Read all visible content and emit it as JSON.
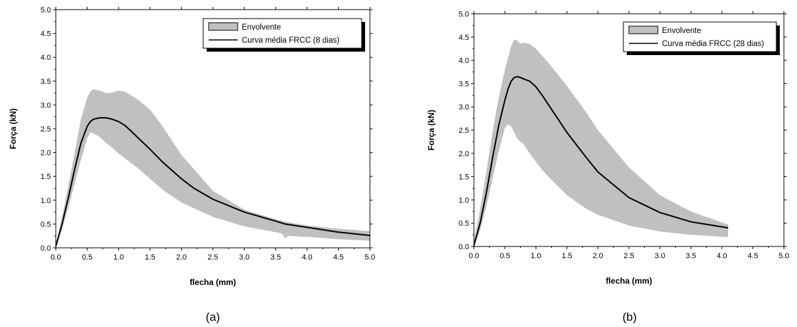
{
  "chart_data": [
    {
      "type": "area",
      "caption": "(a)",
      "xlabel": "flecha (mm)",
      "ylabel": "Força (kN)",
      "xlim": [
        0,
        5
      ],
      "ylim": [
        0,
        5
      ],
      "xticks": [
        "0.0",
        "0.5",
        "1.0",
        "1.5",
        "2.0",
        "2.5",
        "3.0",
        "3.5",
        "4.0",
        "4.5",
        "5.0"
      ],
      "yticks": [
        "0.0",
        "0.5",
        "1.0",
        "1.5",
        "2.0",
        "2.5",
        "3.0",
        "3.5",
        "4.0",
        "4.5",
        "5.0"
      ],
      "legend_position": "top-right",
      "band_color": "#c0c0c0",
      "line_color": "#000000",
      "series": [
        {
          "name": "Envolvente",
          "kind": "band",
          "x": [
            0.0,
            0.1,
            0.2,
            0.3,
            0.4,
            0.5,
            0.55,
            0.6,
            0.7,
            0.8,
            0.9,
            1.0,
            1.1,
            1.2,
            1.3,
            1.5,
            1.7,
            2.0,
            2.5,
            3.0,
            3.5,
            3.6,
            3.65,
            3.7,
            4.0,
            4.5,
            5.0
          ],
          "upper": [
            0.08,
            0.65,
            1.3,
            2.0,
            2.7,
            3.15,
            3.28,
            3.33,
            3.3,
            3.25,
            3.26,
            3.3,
            3.28,
            3.2,
            3.12,
            2.9,
            2.55,
            1.95,
            1.2,
            0.8,
            0.6,
            0.57,
            0.55,
            0.54,
            0.47,
            0.4,
            0.35
          ],
          "lower": [
            0.0,
            0.38,
            0.85,
            1.35,
            1.85,
            2.3,
            2.43,
            2.4,
            2.33,
            2.2,
            2.1,
            1.98,
            1.88,
            1.78,
            1.68,
            1.45,
            1.22,
            0.95,
            0.65,
            0.45,
            0.33,
            0.3,
            0.2,
            0.25,
            0.23,
            0.18,
            0.15
          ]
        },
        {
          "name": "Curva média FRCC (8 dias)",
          "kind": "line",
          "x": [
            0.0,
            0.1,
            0.2,
            0.3,
            0.4,
            0.5,
            0.55,
            0.6,
            0.7,
            0.8,
            0.9,
            1.0,
            1.1,
            1.2,
            1.3,
            1.5,
            1.7,
            2.0,
            2.2,
            2.5,
            3.0,
            3.5,
            3.65,
            4.0,
            4.5,
            5.0
          ],
          "y": [
            0.03,
            0.5,
            1.05,
            1.65,
            2.2,
            2.55,
            2.65,
            2.7,
            2.73,
            2.73,
            2.7,
            2.65,
            2.57,
            2.45,
            2.32,
            2.07,
            1.8,
            1.45,
            1.25,
            1.02,
            0.75,
            0.56,
            0.5,
            0.43,
            0.33,
            0.26
          ]
        }
      ]
    },
    {
      "type": "area",
      "caption": "(b)",
      "xlabel": "flecha (mm)",
      "ylabel": "Força (kN)",
      "xlim": [
        0,
        5
      ],
      "ylim": [
        0,
        5
      ],
      "xticks": [
        "0.0",
        "0.5",
        "1.0",
        "1.5",
        "2.0",
        "2.5",
        "3.0",
        "3.5",
        "4.0",
        "4.5",
        "5.0"
      ],
      "yticks": [
        "0.0",
        "0.5",
        "1.0",
        "1.5",
        "2.0",
        "2.5",
        "3.0",
        "3.5",
        "4.0",
        "4.5",
        "5.0"
      ],
      "legend_position": "top-right",
      "band_color": "#c0c0c0",
      "line_color": "#000000",
      "series": [
        {
          "name": "Envolvente",
          "kind": "band",
          "x": [
            0.0,
            0.1,
            0.2,
            0.3,
            0.4,
            0.5,
            0.55,
            0.6,
            0.65,
            0.7,
            0.75,
            0.8,
            0.9,
            1.0,
            1.1,
            1.2,
            1.5,
            1.8,
            2.0,
            2.5,
            3.0,
            3.5,
            4.1
          ],
          "upper": [
            0.12,
            0.8,
            1.6,
            2.45,
            3.2,
            3.8,
            4.05,
            4.3,
            4.45,
            4.42,
            4.35,
            4.38,
            4.35,
            4.25,
            4.1,
            3.95,
            3.45,
            2.9,
            2.5,
            1.7,
            1.1,
            0.75,
            0.47
          ],
          "lower": [
            0.0,
            0.35,
            0.85,
            1.45,
            2.05,
            2.55,
            2.62,
            2.58,
            2.45,
            2.32,
            2.25,
            2.2,
            2.0,
            1.82,
            1.65,
            1.5,
            1.1,
            0.82,
            0.68,
            0.45,
            0.32,
            0.25,
            0.2
          ]
        },
        {
          "name": "Curva média FRCC (28 dias)",
          "kind": "line",
          "x": [
            0.0,
            0.1,
            0.2,
            0.3,
            0.4,
            0.5,
            0.55,
            0.6,
            0.65,
            0.7,
            0.75,
            0.8,
            0.9,
            1.0,
            1.1,
            1.2,
            1.5,
            1.8,
            2.0,
            2.5,
            3.0,
            3.5,
            4.1
          ],
          "y": [
            0.02,
            0.5,
            1.15,
            1.9,
            2.6,
            3.15,
            3.38,
            3.55,
            3.63,
            3.65,
            3.63,
            3.6,
            3.55,
            3.43,
            3.25,
            3.05,
            2.45,
            1.93,
            1.6,
            1.05,
            0.73,
            0.53,
            0.4
          ]
        }
      ]
    }
  ]
}
